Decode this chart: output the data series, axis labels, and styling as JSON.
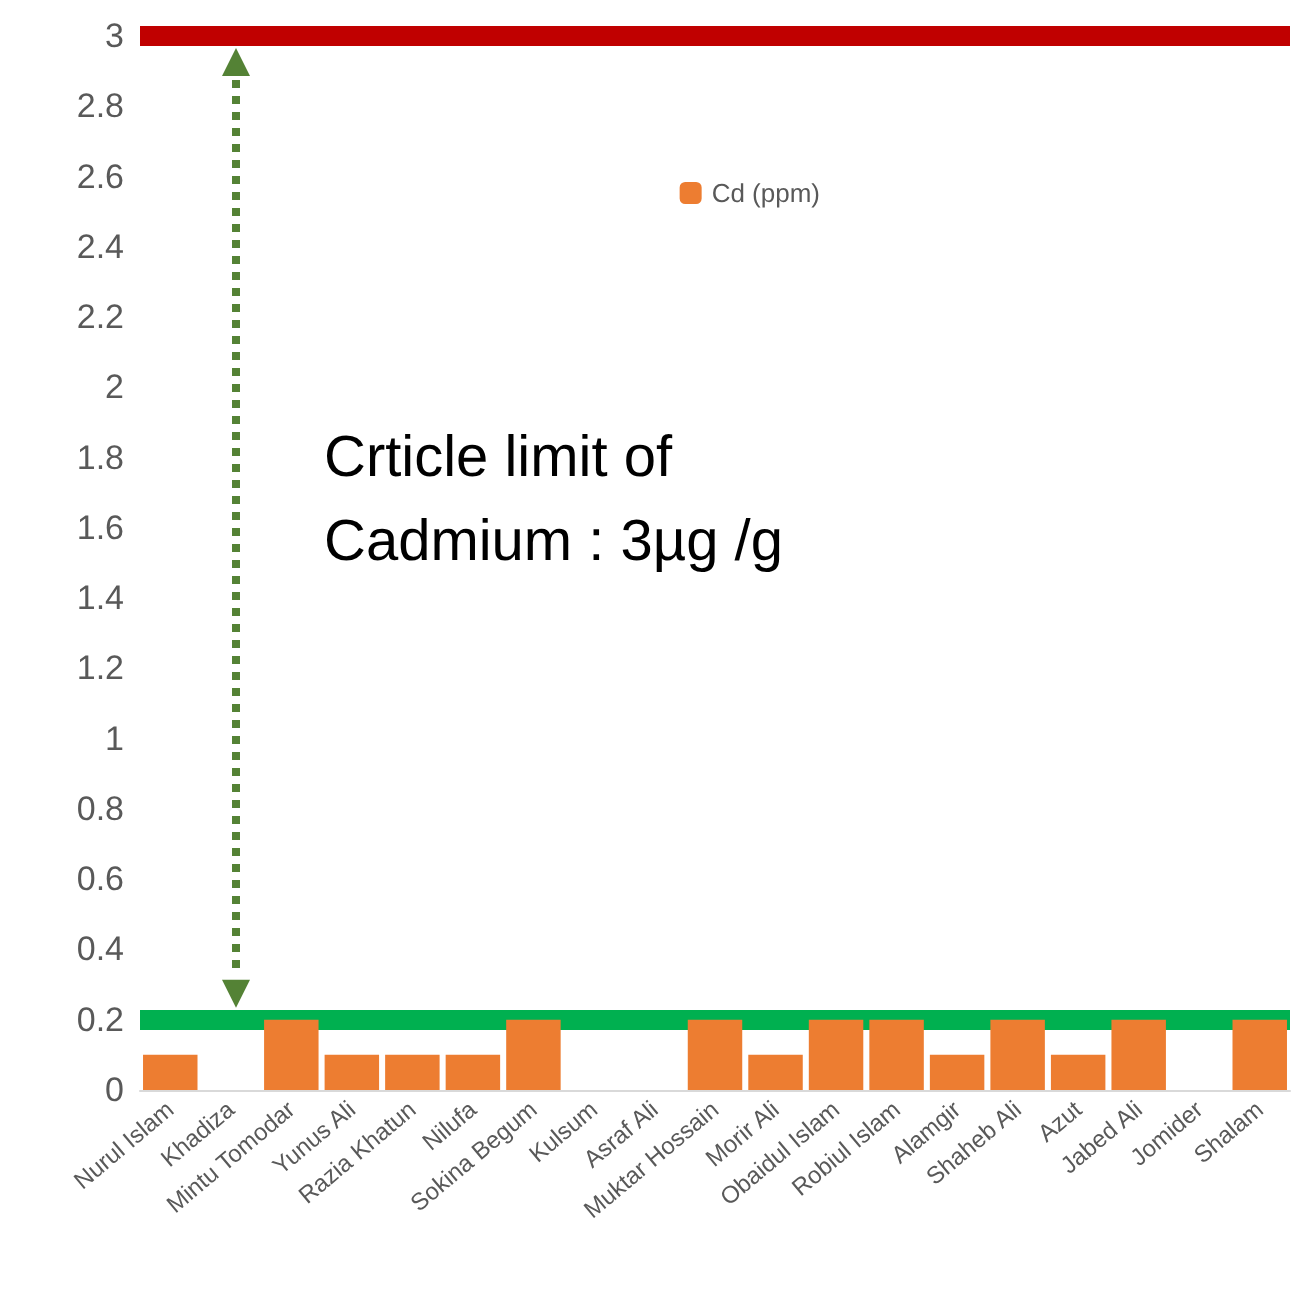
{
  "chart_data": {
    "type": "bar",
    "categories": [
      "Nurul Islam",
      "Khadiza",
      "Mintu Tomodar",
      "Yunus Ali",
      "Razia Khatun",
      "Nilufa",
      "Sokina Begum",
      "Kulsum",
      "Asraf Ali",
      "Muktar Hossain",
      "Morir Ali",
      "Obaidul Islam",
      "Robiul Islam",
      "Alamgir",
      "Shaheb Ali",
      "Azut",
      "Jabed Ali",
      "Jomider",
      "Shalam"
    ],
    "series": [
      {
        "name": "Cd (ppm)",
        "color": "#ed7d31",
        "values": [
          0.1,
          0,
          0.2,
          0.1,
          0.1,
          0.1,
          0.2,
          0,
          0,
          0.2,
          0.1,
          0.2,
          0.2,
          0.1,
          0.2,
          0.1,
          0.2,
          0,
          0.2
        ]
      }
    ],
    "ylim": [
      0,
      3
    ],
    "yticks": [
      0,
      0.2,
      0.4,
      0.6,
      0.8,
      1,
      1.2,
      1.4,
      1.6,
      1.8,
      2,
      2.2,
      2.4,
      2.6,
      2.8,
      3
    ],
    "ref_lines": [
      {
        "axis": "y",
        "value": 3,
        "color": "#c00000"
      },
      {
        "axis": "y",
        "value": 0.2,
        "color": "#00b050"
      }
    ],
    "annotations": [
      "Crticle limit of Cadmium : 3µg /g"
    ],
    "grid": false,
    "legend": "top right"
  }
}
